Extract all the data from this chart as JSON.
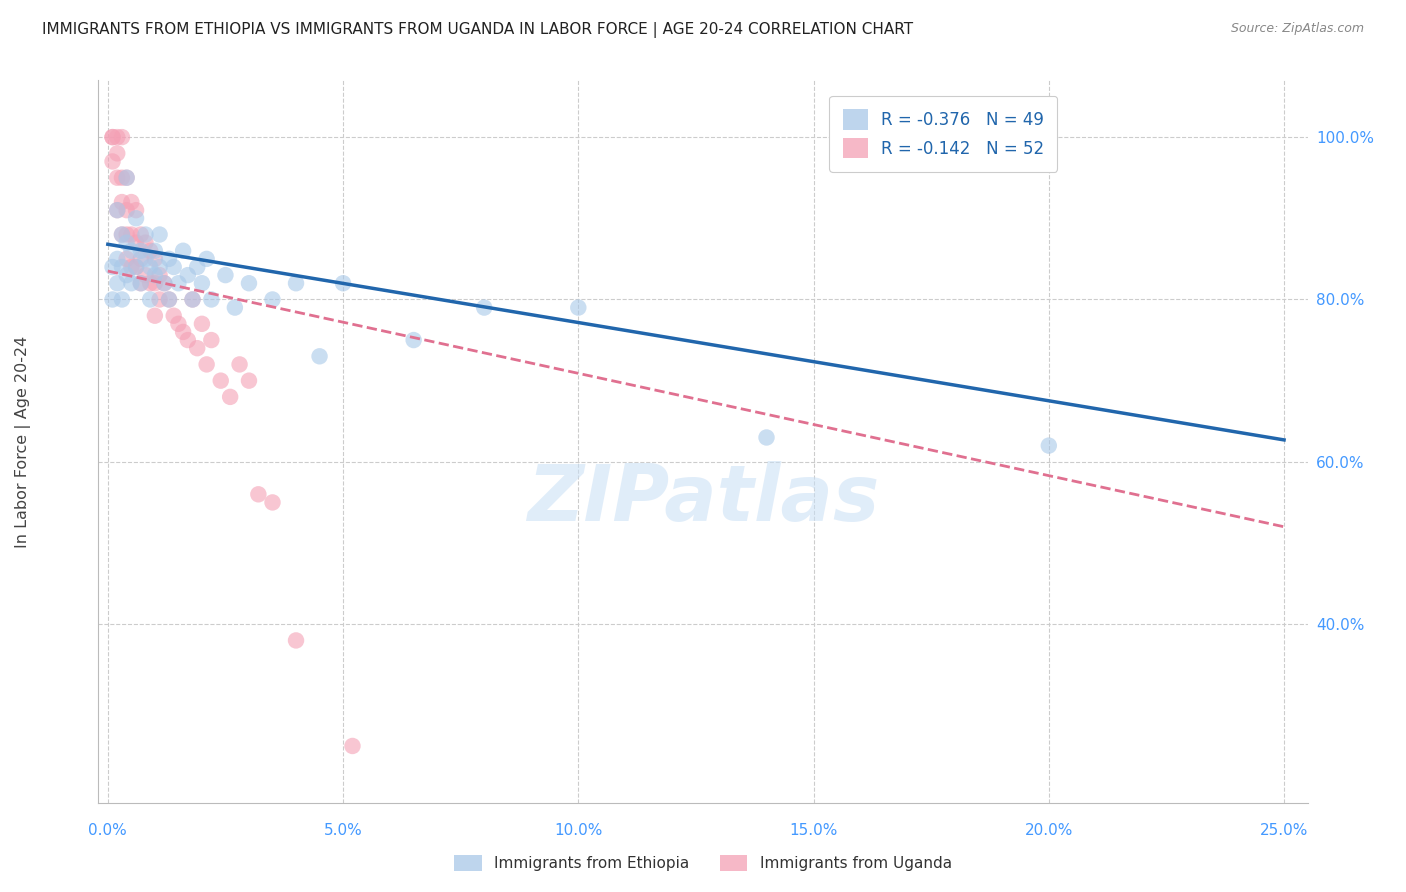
{
  "title": "IMMIGRANTS FROM ETHIOPIA VS IMMIGRANTS FROM UGANDA IN LABOR FORCE | AGE 20-24 CORRELATION CHART",
  "source": "Source: ZipAtlas.com",
  "ylabel": "In Labor Force | Age 20-24",
  "y_ticks_right": [
    "40.0%",
    "60.0%",
    "80.0%",
    "100.0%"
  ],
  "y_tick_vals": [
    0.4,
    0.6,
    0.8,
    1.0
  ],
  "x_tick_vals": [
    0.0,
    0.05,
    0.1,
    0.15,
    0.2,
    0.25
  ],
  "x_tick_labels": [
    "0.0%",
    "5.0%",
    "10.0%",
    "15.0%",
    "20.0%",
    "25.0%"
  ],
  "x_lim": [
    -0.002,
    0.255
  ],
  "y_lim": [
    0.18,
    1.07
  ],
  "legend_eth_r": "R = -0.376",
  "legend_eth_n": "N = 49",
  "legend_uga_r": "R = -0.142",
  "legend_uga_n": "N = 52",
  "eth_color": "#a8c8e8",
  "uga_color": "#f4a0b5",
  "eth_line_color": "#2166ac",
  "uga_line_color": "#e07090",
  "watermark": "ZIPatlas",
  "title_fontsize": 11,
  "axis_label_color": "#4499ff",
  "grid_color": "#cccccc",
  "eth_line_x0": 0.0,
  "eth_line_y0": 0.868,
  "eth_line_x1": 0.25,
  "eth_line_y1": 0.627,
  "uga_line_x0": 0.0,
  "uga_line_y0": 0.835,
  "uga_line_x1": 0.25,
  "uga_line_y1": 0.52,
  "ethiopia_x": [
    0.001,
    0.001,
    0.002,
    0.002,
    0.002,
    0.003,
    0.003,
    0.003,
    0.004,
    0.004,
    0.004,
    0.005,
    0.005,
    0.006,
    0.006,
    0.007,
    0.007,
    0.008,
    0.008,
    0.009,
    0.009,
    0.01,
    0.01,
    0.011,
    0.011,
    0.012,
    0.013,
    0.013,
    0.014,
    0.015,
    0.016,
    0.017,
    0.018,
    0.019,
    0.02,
    0.021,
    0.022,
    0.025,
    0.027,
    0.03,
    0.035,
    0.04,
    0.045,
    0.05,
    0.065,
    0.08,
    0.1,
    0.14,
    0.2
  ],
  "ethiopia_y": [
    0.84,
    0.8,
    0.91,
    0.85,
    0.82,
    0.88,
    0.84,
    0.8,
    0.87,
    0.83,
    0.95,
    0.86,
    0.82,
    0.84,
    0.9,
    0.86,
    0.82,
    0.85,
    0.88,
    0.84,
    0.8,
    0.86,
    0.83,
    0.88,
    0.84,
    0.82,
    0.85,
    0.8,
    0.84,
    0.82,
    0.86,
    0.83,
    0.8,
    0.84,
    0.82,
    0.85,
    0.8,
    0.83,
    0.79,
    0.82,
    0.8,
    0.82,
    0.73,
    0.82,
    0.75,
    0.79,
    0.79,
    0.63,
    0.62
  ],
  "uganda_x": [
    0.001,
    0.001,
    0.001,
    0.002,
    0.002,
    0.002,
    0.002,
    0.003,
    0.003,
    0.003,
    0.003,
    0.004,
    0.004,
    0.004,
    0.004,
    0.005,
    0.005,
    0.005,
    0.006,
    0.006,
    0.006,
    0.007,
    0.007,
    0.007,
    0.008,
    0.008,
    0.009,
    0.009,
    0.01,
    0.01,
    0.01,
    0.011,
    0.011,
    0.012,
    0.013,
    0.014,
    0.015,
    0.016,
    0.017,
    0.018,
    0.019,
    0.02,
    0.021,
    0.022,
    0.024,
    0.026,
    0.028,
    0.03,
    0.032,
    0.035,
    0.04,
    0.052
  ],
  "uganda_y": [
    1.0,
    1.0,
    0.97,
    1.0,
    0.98,
    0.95,
    0.91,
    1.0,
    0.95,
    0.92,
    0.88,
    0.95,
    0.91,
    0.88,
    0.85,
    0.92,
    0.88,
    0.84,
    0.91,
    0.87,
    0.84,
    0.88,
    0.85,
    0.82,
    0.87,
    0.83,
    0.86,
    0.82,
    0.85,
    0.82,
    0.78,
    0.83,
    0.8,
    0.82,
    0.8,
    0.78,
    0.77,
    0.76,
    0.75,
    0.8,
    0.74,
    0.77,
    0.72,
    0.75,
    0.7,
    0.68,
    0.72,
    0.7,
    0.56,
    0.55,
    0.38,
    0.25
  ]
}
